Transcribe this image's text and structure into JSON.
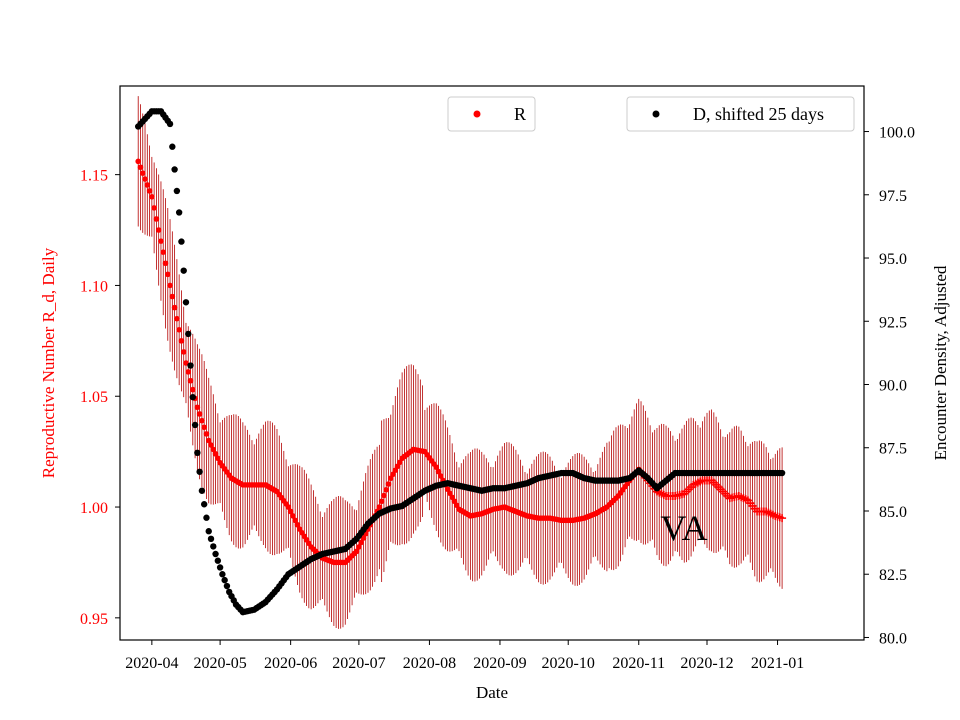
{
  "chart_data": {
    "type": "scatter",
    "state_label": "VA",
    "xlabel": "Date",
    "ylabel_left": "Reproductive Number R_d, Daily",
    "ylabel_right": "Encounter Density, Adjusted",
    "x_ticks": [
      "2020-04",
      "2020-05",
      "2020-06",
      "2020-07",
      "2020-08",
      "2020-09",
      "2020-10",
      "2020-11",
      "2020-12",
      "2021-01"
    ],
    "x_range_days": [
      -14,
      313
    ],
    "ylim_left": [
      0.94,
      1.19
    ],
    "ylim_right": [
      79.9,
      101.8
    ],
    "yticks_left": [
      "0.95",
      "1.00",
      "1.05",
      "1.10",
      "1.15"
    ],
    "yticks_right": [
      "80.0",
      "82.5",
      "85.0",
      "87.5",
      "90.0",
      "92.5",
      "95.0",
      "97.5",
      "100.0"
    ],
    "colors": {
      "r_series": "#ff0000",
      "r_error": "#b30000",
      "d_series": "#000000",
      "left_axis_label": "#ff0000"
    },
    "legend": [
      {
        "label": "R",
        "color": "#ff0000",
        "position": "top-center"
      },
      {
        "label": "D, shifted 25 days",
        "color": "#000000",
        "position": "top-right"
      }
    ],
    "series": [
      {
        "name": "R",
        "axis": "left",
        "marker": "dot",
        "marker_after_day": 214,
        "late_marker": "plus",
        "error_band": "vertical bars, width approx. 0.02-0.06",
        "keyframes": [
          [
            -6,
            1.156
          ],
          [
            0,
            1.14
          ],
          [
            5,
            1.115
          ],
          [
            10,
            1.09
          ],
          [
            15,
            1.065
          ],
          [
            20,
            1.045
          ],
          [
            25,
            1.03
          ],
          [
            30,
            1.02
          ],
          [
            35,
            1.013
          ],
          [
            40,
            1.01
          ],
          [
            45,
            1.01
          ],
          [
            50,
            1.01
          ],
          [
            55,
            1.007
          ],
          [
            60,
            1.0
          ],
          [
            65,
            0.99
          ],
          [
            70,
            0.982
          ],
          [
            75,
            0.977
          ],
          [
            80,
            0.975
          ],
          [
            85,
            0.975
          ],
          [
            90,
            0.98
          ],
          [
            95,
            0.99
          ],
          [
            100,
            1.0
          ],
          [
            105,
            1.013
          ],
          [
            110,
            1.022
          ],
          [
            115,
            1.026
          ],
          [
            120,
            1.025
          ],
          [
            125,
            1.018
          ],
          [
            130,
            1.008
          ],
          [
            135,
            0.999
          ],
          [
            140,
            0.996
          ],
          [
            145,
            0.997
          ],
          [
            150,
            0.999
          ],
          [
            155,
            1.0
          ],
          [
            160,
            0.998
          ],
          [
            165,
            0.996
          ],
          [
            170,
            0.995
          ],
          [
            175,
            0.995
          ],
          [
            180,
            0.994
          ],
          [
            185,
            0.994
          ],
          [
            190,
            0.995
          ],
          [
            195,
            0.997
          ],
          [
            200,
            1.0
          ],
          [
            205,
            1.005
          ],
          [
            210,
            1.012
          ],
          [
            214,
            1.017
          ],
          [
            218,
            1.012
          ],
          [
            222,
            1.007
          ],
          [
            226,
            1.005
          ],
          [
            230,
            1.005
          ],
          [
            234,
            1.006
          ],
          [
            238,
            1.01
          ],
          [
            242,
            1.012
          ],
          [
            246,
            1.012
          ],
          [
            250,
            1.008
          ],
          [
            254,
            1.004
          ],
          [
            258,
            1.005
          ],
          [
            262,
            1.003
          ],
          [
            266,
            0.998
          ],
          [
            270,
            0.998
          ],
          [
            274,
            0.996
          ],
          [
            277,
            0.995
          ]
        ]
      },
      {
        "name": "D, shifted 25 days",
        "axis": "right",
        "marker": "dot",
        "keyframes": [
          [
            -6,
            100.2
          ],
          [
            -3,
            100.5
          ],
          [
            0,
            100.8
          ],
          [
            4,
            100.8
          ],
          [
            8,
            100.3
          ],
          [
            10,
            98.5
          ],
          [
            12,
            96.8
          ],
          [
            14,
            94.5
          ],
          [
            16,
            92.0
          ],
          [
            18,
            89.5
          ],
          [
            20,
            87.3
          ],
          [
            22,
            85.8
          ],
          [
            25,
            84.2
          ],
          [
            28,
            83.3
          ],
          [
            31,
            82.5
          ],
          [
            34,
            81.8
          ],
          [
            37,
            81.3
          ],
          [
            40,
            81.0
          ],
          [
            45,
            81.1
          ],
          [
            50,
            81.4
          ],
          [
            55,
            81.9
          ],
          [
            60,
            82.5
          ],
          [
            65,
            82.8
          ],
          [
            70,
            83.1
          ],
          [
            75,
            83.3
          ],
          [
            80,
            83.4
          ],
          [
            85,
            83.5
          ],
          [
            90,
            83.9
          ],
          [
            95,
            84.5
          ],
          [
            100,
            84.9
          ],
          [
            105,
            85.1
          ],
          [
            110,
            85.2
          ],
          [
            115,
            85.5
          ],
          [
            120,
            85.8
          ],
          [
            125,
            86.0
          ],
          [
            130,
            86.1
          ],
          [
            135,
            86.0
          ],
          [
            140,
            85.9
          ],
          [
            145,
            85.8
          ],
          [
            150,
            85.9
          ],
          [
            155,
            85.9
          ],
          [
            160,
            86.0
          ],
          [
            165,
            86.1
          ],
          [
            170,
            86.3
          ],
          [
            175,
            86.4
          ],
          [
            180,
            86.5
          ],
          [
            185,
            86.5
          ],
          [
            190,
            86.3
          ],
          [
            195,
            86.2
          ],
          [
            200,
            86.2
          ],
          [
            205,
            86.2
          ],
          [
            210,
            86.3
          ],
          [
            214,
            86.6
          ],
          [
            218,
            86.3
          ],
          [
            222,
            85.9
          ],
          [
            226,
            86.2
          ],
          [
            230,
            86.5
          ],
          [
            240,
            86.5
          ],
          [
            250,
            86.5
          ],
          [
            260,
            86.5
          ],
          [
            270,
            86.5
          ],
          [
            277,
            86.5
          ]
        ]
      }
    ]
  }
}
